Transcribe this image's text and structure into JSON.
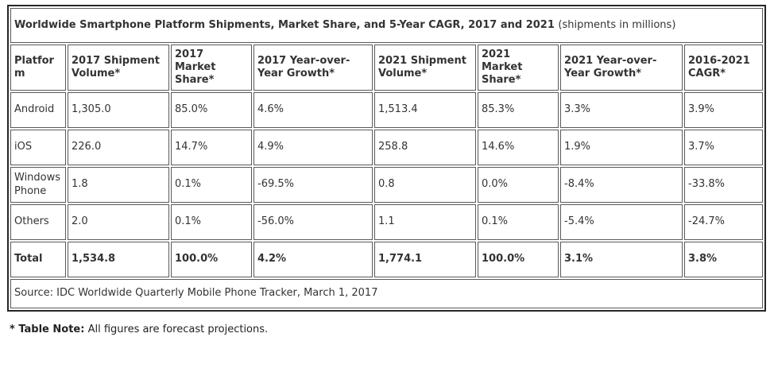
{
  "chart_data": {
    "type": "table",
    "title": "Worldwide Smartphone Platform Shipments, Market Share, and 5-Year CAGR, 2017 and 2021",
    "subtitle": "(shipments in millions)",
    "columns": [
      "Platform",
      "2017 Shipment Volume*",
      "2017 Market Share*",
      "2017 Year-over-Year Growth*",
      "2021 Shipment Volume*",
      "2021 Market Share*",
      "2021 Year-over-Year Growth*",
      "2016-2021 CAGR*"
    ],
    "rows": [
      [
        "Android",
        "1,305.0",
        "85.0%",
        "4.6%",
        "1,513.4",
        "85.3%",
        "3.3%",
        "3.9%"
      ],
      [
        "iOS",
        "226.0",
        "14.7%",
        "4.9%",
        "258.8",
        "14.6%",
        "1.9%",
        "3.7%"
      ],
      [
        "Windows Phone",
        "1.8",
        "0.1%",
        "-69.5%",
        "0.8",
        "0.0%",
        "-8.4%",
        "-33.8%"
      ],
      [
        "Others",
        "2.0",
        "0.1%",
        "-56.0%",
        "1.1",
        "0.1%",
        "-5.4%",
        "-24.7%"
      ]
    ],
    "total_row": [
      "Total",
      "1,534.8",
      "100.0%",
      "4.2%",
      "1,774.1",
      "100.0%",
      "3.1%",
      "3.8%"
    ],
    "source": "Source: IDC Worldwide Quarterly Mobile Phone Tracker, March 1, 2017"
  },
  "note": {
    "label": "* Table Note:",
    "text": "All figures are forecast projections."
  },
  "colors": {
    "outer_border": "#262626",
    "cell_border": "#595959",
    "text": "#333333",
    "background": "#ffffff"
  }
}
